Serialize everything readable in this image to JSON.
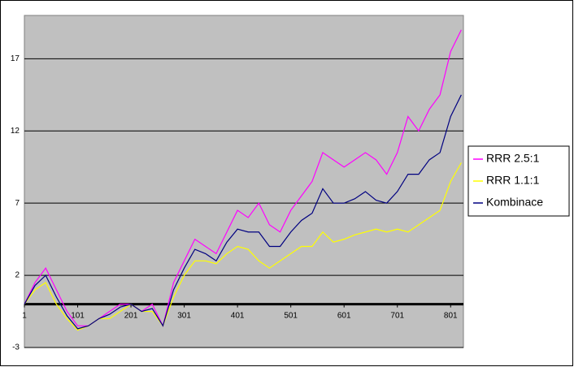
{
  "chart_data": {
    "type": "line",
    "x": [
      1,
      21,
      41,
      61,
      81,
      101,
      121,
      141,
      161,
      181,
      201,
      221,
      241,
      261,
      281,
      301,
      321,
      341,
      361,
      381,
      401,
      421,
      441,
      461,
      481,
      501,
      521,
      541,
      561,
      581,
      601,
      621,
      641,
      661,
      681,
      701,
      721,
      741,
      761,
      781,
      801,
      821
    ],
    "series": [
      {
        "name": "RRR 2.5:1",
        "color": "#ff00ff",
        "values": [
          0,
          1.5,
          2.5,
          1,
          -0.5,
          -1.5,
          -1.5,
          -1,
          -0.5,
          0,
          0,
          -0.5,
          0,
          -1.5,
          1.5,
          3,
          4.5,
          4,
          3.5,
          5,
          6.5,
          6,
          7,
          5.5,
          5,
          6.5,
          7.5,
          8.5,
          10.5,
          10,
          9.5,
          10,
          10.5,
          10,
          9,
          10.5,
          13,
          12,
          13.5,
          14.5,
          17.5,
          19
        ]
      },
      {
        "name": "RRR 1.1:1",
        "color": "#ffff00",
        "values": [
          0,
          1,
          1.5,
          0,
          -1,
          -1.8,
          -1.5,
          -1,
          -1,
          -0.5,
          0,
          -0.5,
          -0.5,
          -1.5,
          0.5,
          2,
          3,
          3,
          2.8,
          3.5,
          4,
          3.8,
          3,
          2.5,
          3,
          3.5,
          4,
          4,
          5,
          4.3,
          4.5,
          4.8,
          5,
          5.2,
          5,
          5.2,
          5,
          5.5,
          6,
          6.5,
          8.5,
          9.8
        ]
      },
      {
        "name": "Kombinace",
        "color": "#000080",
        "values": [
          0,
          1.3,
          2,
          0.5,
          -0.8,
          -1.7,
          -1.5,
          -1,
          -0.7,
          -0.2,
          0,
          -0.5,
          -0.3,
          -1.5,
          1,
          2.5,
          3.8,
          3.5,
          3,
          4.3,
          5.2,
          5,
          5,
          4,
          4,
          5,
          5.8,
          6.3,
          8,
          7,
          7,
          7.3,
          7.8,
          7.2,
          7,
          7.8,
          9,
          9,
          10,
          10.5,
          13,
          14.5
        ]
      }
    ],
    "xlim": [
      1,
      825
    ],
    "xticks": [
      1,
      101,
      201,
      301,
      401,
      501,
      601,
      701,
      801
    ],
    "ylim": [
      -3,
      20
    ],
    "yticks": [
      -3,
      2,
      7,
      12,
      17
    ],
    "grid": true,
    "legend": "right"
  }
}
